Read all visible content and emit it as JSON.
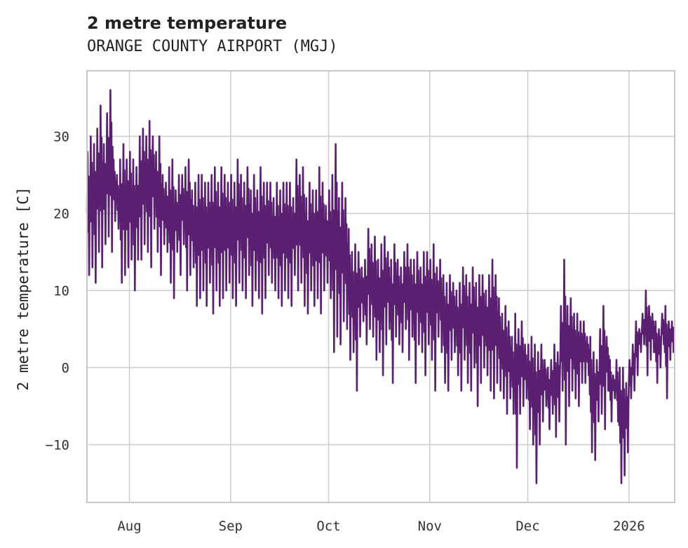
{
  "chart_data": {
    "type": "line",
    "title": "2 metre temperature",
    "subtitle": "ORANGE COUNTY AIRPORT (MGJ)",
    "ylabel": "2 metre temperature [C]",
    "xlabel": "",
    "x_start": "2025-07-19",
    "x_end": "2026-01-15",
    "xlim_days": [
      0,
      180
    ],
    "ylim": [
      -17.5,
      38.5
    ],
    "grid": true,
    "x_ticks": [
      {
        "label": "Aug",
        "day": 13
      },
      {
        "label": "Sep",
        "day": 44
      },
      {
        "label": "Oct",
        "day": 74
      },
      {
        "label": "Nov",
        "day": 105
      },
      {
        "label": "Dec",
        "day": 135
      },
      {
        "label": "2026",
        "day": 166
      }
    ],
    "y_ticks": [
      {
        "label": "30",
        "value": 30
      },
      {
        "label": "20",
        "value": 20
      },
      {
        "label": "10",
        "value": 10
      },
      {
        "label": "0",
        "value": 0
      },
      {
        "label": "−10",
        "value": -10
      }
    ],
    "series": [
      {
        "name": "2 metre temperature",
        "color": "#5a1f70",
        "daily_range": [
          [
            12,
            28
          ],
          [
            13,
            30
          ],
          [
            11,
            29
          ],
          [
            15,
            31
          ],
          [
            13,
            34
          ],
          [
            16,
            29
          ],
          [
            17,
            33
          ],
          [
            15,
            36
          ],
          [
            19,
            27
          ],
          [
            18,
            25
          ],
          [
            11,
            27
          ],
          [
            12,
            29
          ],
          [
            13,
            27
          ],
          [
            14,
            28
          ],
          [
            10,
            27
          ],
          [
            14,
            26
          ],
          [
            14,
            30
          ],
          [
            16,
            31
          ],
          [
            15,
            30
          ],
          [
            13,
            32
          ],
          [
            18,
            30
          ],
          [
            15,
            28
          ],
          [
            12,
            30
          ],
          [
            16,
            25
          ],
          [
            15,
            24
          ],
          [
            11,
            26
          ],
          [
            9,
            27
          ],
          [
            15,
            23
          ],
          [
            12,
            25
          ],
          [
            16,
            25
          ],
          [
            10,
            26
          ],
          [
            12,
            27
          ],
          [
            13,
            23
          ],
          [
            8,
            24
          ],
          [
            9,
            25
          ],
          [
            10,
            25
          ],
          [
            8,
            24
          ],
          [
            11,
            24
          ],
          [
            7,
            25
          ],
          [
            10,
            26
          ],
          [
            8,
            24
          ],
          [
            9,
            26
          ],
          [
            10,
            25
          ],
          [
            11,
            24
          ],
          [
            9,
            25
          ],
          [
            8,
            24
          ],
          [
            11,
            27
          ],
          [
            10,
            25
          ],
          [
            9,
            24
          ],
          [
            12,
            26
          ],
          [
            8,
            23
          ],
          [
            10,
            25
          ],
          [
            9,
            23
          ],
          [
            7,
            26
          ],
          [
            9,
            24
          ],
          [
            12,
            24
          ],
          [
            11,
            24
          ],
          [
            10,
            22
          ],
          [
            9,
            24
          ],
          [
            8,
            23
          ],
          [
            10,
            24
          ],
          [
            9,
            24
          ],
          [
            8,
            24
          ],
          [
            12,
            22
          ],
          [
            10,
            27
          ],
          [
            11,
            25
          ],
          [
            8,
            26
          ],
          [
            7,
            22
          ],
          [
            10,
            24
          ],
          [
            8,
            23
          ],
          [
            9,
            23
          ],
          [
            7,
            26
          ],
          [
            10,
            24
          ],
          [
            11,
            21
          ],
          [
            9,
            23
          ],
          [
            2,
            25
          ],
          [
            4,
            29
          ],
          [
            3,
            22
          ],
          [
            6,
            24
          ],
          [
            5,
            22
          ],
          [
            1,
            18
          ],
          [
            2,
            15
          ],
          [
            -3,
            16
          ],
          [
            4,
            15
          ],
          [
            6,
            13
          ],
          [
            3,
            14
          ],
          [
            5,
            18
          ],
          [
            4,
            16
          ],
          [
            1,
            17
          ],
          [
            2,
            14
          ],
          [
            -1,
            16
          ],
          [
            3,
            17
          ],
          [
            5,
            15
          ],
          [
            -2,
            14
          ],
          [
            4,
            16
          ],
          [
            3,
            14
          ],
          [
            2,
            13
          ],
          [
            5,
            15
          ],
          [
            1,
            16
          ],
          [
            4,
            14
          ],
          [
            -2,
            14
          ],
          [
            3,
            15
          ],
          [
            2,
            13
          ],
          [
            -1,
            15
          ],
          [
            3,
            15
          ],
          [
            1,
            14
          ],
          [
            -3,
            16
          ],
          [
            4,
            13
          ],
          [
            2,
            14
          ],
          [
            -2,
            12
          ],
          [
            -3,
            11
          ],
          [
            1,
            12
          ],
          [
            2,
            11
          ],
          [
            -1,
            10
          ],
          [
            -3,
            11
          ],
          [
            1,
            13
          ],
          [
            -2,
            12
          ],
          [
            -3,
            11
          ],
          [
            0,
            13
          ],
          [
            -5,
            11
          ],
          [
            -2,
            12
          ],
          [
            0,
            12
          ],
          [
            -1,
            10
          ],
          [
            -3,
            12
          ],
          [
            -4,
            14
          ],
          [
            -2,
            12
          ],
          [
            -3,
            9
          ],
          [
            -4,
            7
          ],
          [
            -6,
            8
          ],
          [
            -4,
            6
          ],
          [
            -6,
            4
          ],
          [
            -13,
            7
          ],
          [
            -6,
            5
          ],
          [
            -5,
            6
          ],
          [
            -4,
            3
          ],
          [
            -8,
            3
          ],
          [
            -10,
            4
          ],
          [
            -15,
            3
          ],
          [
            -10,
            2
          ],
          [
            -7,
            3
          ],
          [
            -5,
            1
          ],
          [
            -8,
            0
          ],
          [
            -6,
            1
          ],
          [
            -9,
            3
          ],
          [
            -7,
            2
          ],
          [
            -3,
            8
          ],
          [
            -10,
            14
          ],
          [
            -5,
            8
          ],
          [
            -3,
            9
          ],
          [
            -4,
            7
          ],
          [
            -5,
            7
          ],
          [
            -2,
            6
          ],
          [
            -2,
            6
          ],
          [
            -1,
            4
          ],
          [
            -11,
            4
          ],
          [
            -12,
            2
          ],
          [
            -7,
            1
          ],
          [
            -6,
            5
          ],
          [
            -8,
            8
          ],
          [
            -3,
            4
          ],
          [
            -7,
            1
          ],
          [
            -4,
            -1
          ],
          [
            -7,
            1
          ],
          [
            -15,
            0
          ],
          [
            -14,
            0
          ],
          [
            -11,
            -2
          ],
          [
            -4,
            1
          ],
          [
            -3,
            3
          ],
          [
            -1,
            6
          ],
          [
            2,
            5
          ],
          [
            3,
            7
          ],
          [
            -1,
            10
          ],
          [
            1,
            8
          ],
          [
            2,
            7
          ],
          [
            -2,
            6
          ],
          [
            0,
            5
          ],
          [
            3,
            7
          ],
          [
            -4,
            8
          ],
          [
            1,
            6
          ],
          [
            2,
            6
          ]
        ]
      }
    ]
  }
}
